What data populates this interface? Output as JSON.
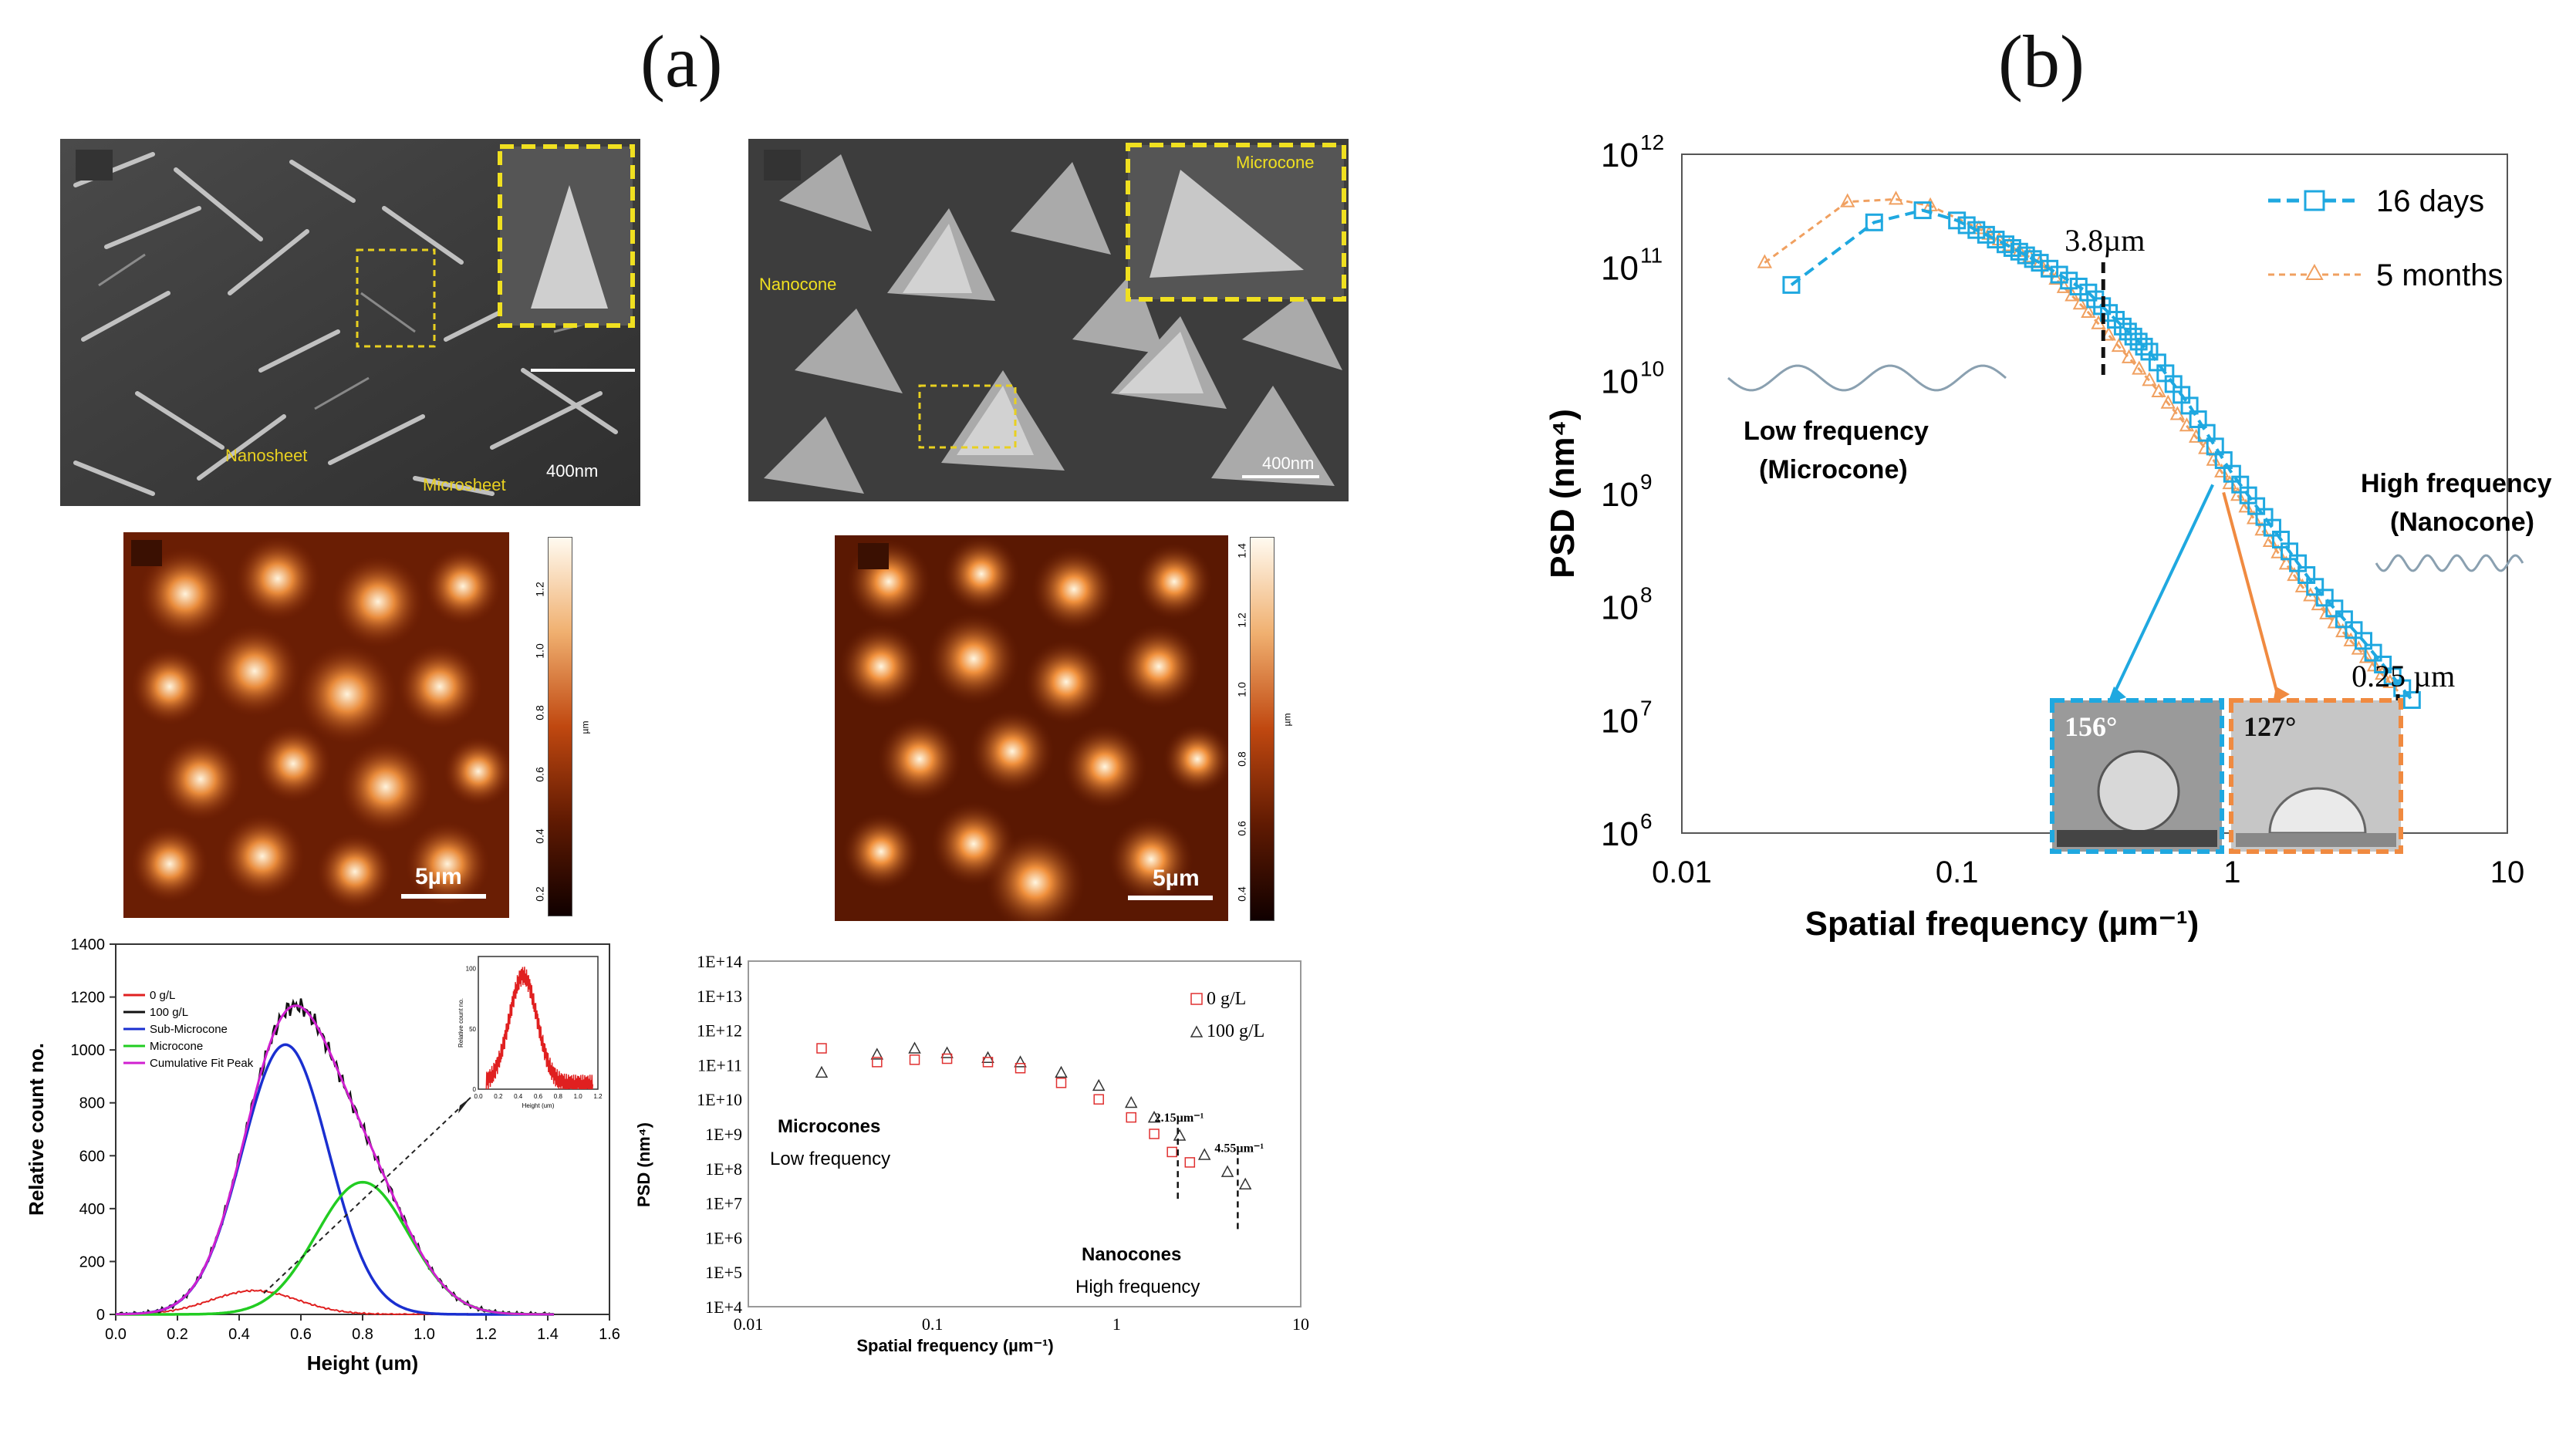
{
  "labels": {
    "a": "(a)",
    "b": "(b)"
  },
  "sem1": {
    "scale": "400nm",
    "label_nanosheet": "Nanosheet",
    "label_microsheet": "Microsheet"
  },
  "sem2": {
    "scale": "400nm",
    "label_microcone": "Microcone",
    "label_nanocone": "Nanocone"
  },
  "afm1": {
    "scale": "5µm",
    "colorbar_ticks": [
      "1.2",
      "1.0",
      "0.8",
      "0.6",
      "0.4",
      "0.2"
    ],
    "unit": "µm"
  },
  "afm2": {
    "scale": "5µm",
    "colorbar_ticks": [
      "1.4",
      "1.2",
      "1.0",
      "0.8",
      "0.6",
      "0.4"
    ],
    "unit": "µm"
  },
  "colors": {
    "afm_dark": "#2a0a02",
    "afm_mid": "#b8400e",
    "afm_light": "#fff3dc",
    "blue": "#1fa8e0",
    "orange": "#f0a060",
    "red": "#e02020"
  },
  "chart_data": [
    {
      "id": "height-distribution",
      "type": "line",
      "xlabel": "Height (um)",
      "ylabel": "Relative count no.",
      "xlim": [
        0,
        1.6
      ],
      "ylim": [
        0,
        1400
      ],
      "x_ticks": [
        "0.0",
        "0.2",
        "0.4",
        "0.6",
        "0.8",
        "1.0",
        "1.2",
        "1.4",
        "1.6"
      ],
      "y_ticks": [
        "0",
        "200",
        "400",
        "600",
        "800",
        "1000",
        "1200",
        "1400"
      ],
      "legend": [
        "0 g/L",
        "100 g/L",
        "Sub-Microcone",
        "Microcone",
        "Cumulative Fit Peak"
      ],
      "series": [
        {
          "name": "0 g/L",
          "color": "#e02020",
          "peak_x": 0.45,
          "peak_y": 90,
          "sigma": 0.14
        },
        {
          "name": "100 g/L",
          "color": "#111111",
          "peak_x": 0.58,
          "peak_y": 1240
        },
        {
          "name": "Sub-Microcone",
          "color": "#1a2fd0",
          "peak_x": 0.55,
          "peak_y": 1020,
          "sigma": 0.14
        },
        {
          "name": "Microcone",
          "color": "#22cc22",
          "peak_x": 0.8,
          "peak_y": 500,
          "sigma": 0.15
        },
        {
          "name": "Cumulative Fit Peak",
          "color": "#d020d0"
        }
      ],
      "inset": {
        "xlabel": "Height (um)",
        "ylabel": "Relative count no.",
        "x_ticks": [
          "0.0",
          "0.2",
          "0.4",
          "0.6",
          "0.8",
          "1.0",
          "1.2"
        ],
        "y_ticks": [
          "0",
          "50",
          "100"
        ],
        "peak_x": 0.45,
        "peak_y": 90,
        "sigma": 0.14,
        "ylim": [
          0,
          110
        ],
        "xlim": [
          0,
          1.2
        ]
      }
    },
    {
      "id": "psd-a",
      "type": "scatter",
      "xlabel": "Spatial frequency (µm⁻¹)",
      "ylabel": "PSD (nm⁴)",
      "xscale": "log",
      "yscale": "log",
      "xlim": [
        0.01,
        10
      ],
      "ylim": [
        10000.0,
        100000000000000.0
      ],
      "x_ticks": [
        "0.01",
        "0.1",
        "1",
        "10"
      ],
      "y_ticks": [
        "1E+14",
        "1E+13",
        "1E+12",
        "1E+11",
        "1E+10",
        "1E+9",
        "1E+8",
        "1E+7",
        "1E+6",
        "1E+5",
        "1E+4"
      ],
      "legend": [
        "0 g/L",
        "100 g/L"
      ],
      "annotations": {
        "microcones": "Microcones",
        "low": "Low frequency",
        "nanocones": "Nanocones",
        "high": "High frequency",
        "f1": "2.15µm⁻¹",
        "f2": "4.55µm⁻¹"
      },
      "f1_x": 2.15,
      "f2_x": 4.55,
      "series": [
        {
          "name": "0 g/L",
          "marker": "square",
          "color": "#e03030",
          "points": [
            [
              0.025,
              300000000000.0
            ],
            [
              0.05,
              120000000000.0
            ],
            [
              0.08,
              140000000000.0
            ],
            [
              0.12,
              150000000000.0
            ],
            [
              0.2,
              120000000000.0
            ],
            [
              0.3,
              80000000000.0
            ],
            [
              0.5,
              30000000000.0
            ],
            [
              0.8,
              10000000000.0
            ],
            [
              1.2,
              3000000000.0
            ],
            [
              1.6,
              1000000000.0
            ],
            [
              2.0,
              300000000.0
            ],
            [
              2.5,
              150000000.0
            ]
          ]
        },
        {
          "name": "100 g/L",
          "marker": "triangle",
          "color": "#333333",
          "points": [
            [
              0.025,
              60000000000.0
            ],
            [
              0.05,
              200000000000.0
            ],
            [
              0.08,
              300000000000.0
            ],
            [
              0.12,
              220000000000.0
            ],
            [
              0.2,
              160000000000.0
            ],
            [
              0.3,
              120000000000.0
            ],
            [
              0.5,
              60000000000.0
            ],
            [
              0.8,
              25000000000.0
            ],
            [
              1.2,
              8000000000.0
            ],
            [
              1.6,
              3000000000.0
            ],
            [
              2.2,
              900000000.0
            ],
            [
              3.0,
              250000000.0
            ],
            [
              4.0,
              80000000.0
            ],
            [
              5.0,
              35000000.0
            ]
          ]
        }
      ]
    },
    {
      "id": "psd-b",
      "type": "line",
      "xlabel": "Spatial frequency (µm⁻¹)",
      "ylabel": "PSD (nm⁴)",
      "xscale": "log",
      "yscale": "log",
      "xlim": [
        0.01,
        10
      ],
      "ylim": [
        1000000.0,
        1000000000000.0
      ],
      "x_ticks": [
        "0.01",
        "0.1",
        "1",
        "10"
      ],
      "y_ticks_exp": [
        "12",
        "11",
        "10",
        "9",
        "8",
        "7",
        "6"
      ],
      "tick_base": "10",
      "legend": [
        "16 days",
        "5 months"
      ],
      "annotations": {
        "f1": "3.8µm",
        "f2": "0.25 µm",
        "low_1": "Low frequency",
        "low_2": "(Microcone)",
        "high_1": "High frequency",
        "high_2": "(Nanocone)",
        "angle1": "156°",
        "angle2": "127°"
      },
      "f1_x": 0.34,
      "f2_x": 4.0,
      "series": [
        {
          "name": "16 days",
          "color": "#1fa8e0",
          "marker": "square",
          "points": [
            [
              0.025,
              70000000000.0
            ],
            [
              0.05,
              250000000000.0
            ],
            [
              0.075,
              320000000000.0
            ],
            [
              0.1,
              260000000000.0
            ],
            [
              0.15,
              160000000000.0
            ],
            [
              0.2,
              110000000000.0
            ],
            [
              0.3,
              60000000000.0
            ],
            [
              0.4,
              30000000000.0
            ],
            [
              0.5,
              18000000000.0
            ],
            [
              0.7,
              6000000000.0
            ],
            [
              1.0,
              1500000000.0
            ],
            [
              1.4,
              500000000.0
            ],
            [
              2.0,
              150000000.0
            ],
            [
              3.0,
              50000000.0
            ],
            [
              4.5,
              15000000.0
            ]
          ]
        },
        {
          "name": "5 months",
          "color": "#f0a060",
          "marker": "triangle",
          "points": [
            [
              0.02,
              110000000000.0
            ],
            [
              0.04,
              380000000000.0
            ],
            [
              0.06,
              400000000000.0
            ],
            [
              0.08,
              350000000000.0
            ],
            [
              0.12,
              220000000000.0
            ],
            [
              0.2,
              110000000000.0
            ],
            [
              0.3,
              40000000000.0
            ],
            [
              0.5,
              10000000000.0
            ],
            [
              0.8,
              2500000000.0
            ],
            [
              1.2,
              600000000.0
            ],
            [
              1.8,
              150000000.0
            ],
            [
              2.7,
              50000000.0
            ],
            [
              4.0,
              18000000.0
            ]
          ]
        }
      ]
    }
  ]
}
